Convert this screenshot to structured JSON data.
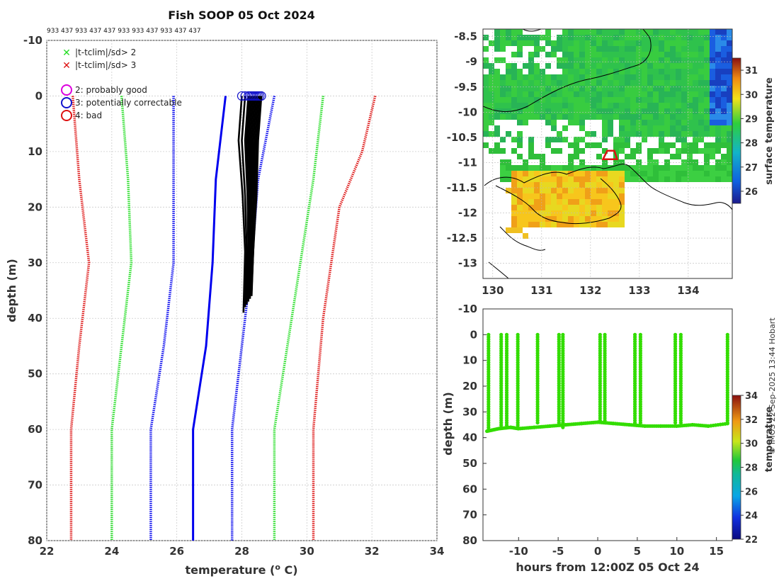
{
  "title": "Fish SOOP 05 Oct 2024",
  "platform_codes": "933 437 933 437 437 933 933 437 933 437 437",
  "credit": "© IMOS 22-Sep-2025 13:44 Hobart",
  "colors": {
    "sd2": "#22dd22",
    "sd3": "#dd1111",
    "qc2": "#dd00dd",
    "qc3": "#1111cc",
    "qc4": "#dd1111",
    "clim_mean": "#0000ee",
    "profile": "#000000",
    "obs": "#33dd00"
  },
  "legend": {
    "sd2": "|t-tclim|/sd> 2",
    "sd3": "|t-tclim|/sd> 3",
    "qc2": "2: probably good",
    "qc3": "3: potentially correctable",
    "qc4": "4: bad"
  },
  "chart_data": [
    {
      "type": "line",
      "name": "profile",
      "title": "Fish SOOP 05 Oct 2024",
      "xlabel": "temperature (o C)",
      "ylabel": "depth (m)",
      "xlim": [
        22,
        34
      ],
      "ylim": [
        80,
        -10
      ],
      "xticks": [
        22,
        24,
        26,
        28,
        30,
        32,
        34
      ],
      "yticks": [
        -10,
        0,
        10,
        20,
        30,
        40,
        50,
        60,
        70,
        80
      ],
      "grid": true,
      "series": [
        {
          "name": "clim -3sd",
          "style": "dotted",
          "color": "#dd1111",
          "x": [
            22.8,
            23.0,
            23.3,
            23.0,
            22.75,
            22.75
          ],
          "y": [
            0,
            15,
            30,
            45,
            60,
            80
          ]
        },
        {
          "name": "clim -2sd",
          "style": "dotted",
          "color": "#22dd22",
          "x": [
            24.3,
            24.5,
            24.6,
            24.3,
            24.0,
            24.0
          ],
          "y": [
            0,
            15,
            30,
            45,
            60,
            80
          ]
        },
        {
          "name": "clim -1sd",
          "style": "dotted",
          "color": "#0000ee",
          "x": [
            25.9,
            25.9,
            25.9,
            25.6,
            25.2,
            25.2
          ],
          "y": [
            0,
            15,
            30,
            45,
            60,
            80
          ]
        },
        {
          "name": "clim mean",
          "style": "solid",
          "color": "#0000ee",
          "x": [
            27.5,
            27.2,
            27.1,
            26.9,
            26.5,
            26.5
          ],
          "y": [
            0,
            15,
            30,
            45,
            60,
            80
          ]
        },
        {
          "name": "clim +1sd",
          "style": "dotted",
          "color": "#0000ee",
          "x": [
            29.0,
            28.5,
            28.3,
            28.0,
            27.7,
            27.7
          ],
          "y": [
            0,
            15,
            30,
            45,
            60,
            80
          ]
        },
        {
          "name": "clim +2sd",
          "style": "dotted",
          "color": "#22dd22",
          "x": [
            30.5,
            30.2,
            29.8,
            29.4,
            29.0,
            29.0
          ],
          "y": [
            0,
            15,
            30,
            45,
            60,
            80
          ]
        },
        {
          "name": "clim +3sd",
          "style": "dotted",
          "color": "#dd1111",
          "x": [
            32.1,
            31.7,
            31.0,
            30.5,
            30.2,
            30.2
          ],
          "y": [
            0,
            10,
            20,
            40,
            60,
            80
          ]
        }
      ],
      "profiles": {
        "color": "#000000",
        "surface_x": [
          28.0,
          28.1,
          28.2,
          28.25,
          28.3,
          28.35,
          28.4,
          28.45,
          28.5,
          28.55,
          28.6
        ],
        "bottom_x": [
          28.05,
          28.1,
          28.15,
          28.15,
          28.2,
          28.2,
          28.2,
          28.25,
          28.25,
          28.3,
          28.3
        ],
        "bottom_y": [
          39,
          38,
          37.5,
          37,
          36.5,
          37,
          36,
          36.5,
          35.5,
          36,
          35
        ]
      }
    },
    {
      "type": "heatmap",
      "name": "map",
      "colorbar_label": "surface temperature",
      "xlim": [
        129.8,
        134.9
      ],
      "ylim": [
        -13.3,
        -8.35
      ],
      "xticks": [
        130,
        131,
        132,
        133,
        134
      ],
      "yticks": [
        -8.5,
        -9,
        -9.5,
        -10,
        -10.5,
        -11,
        -11.5,
        -12,
        -12.5,
        -13
      ],
      "clim": [
        25.5,
        31.5
      ],
      "cticks": [
        26,
        27,
        28,
        29,
        30,
        31
      ],
      "marker": {
        "lon": 132.4,
        "lat": -10.85,
        "label": "Fish SOOP position"
      }
    },
    {
      "type": "scatter",
      "name": "time-depth",
      "xlabel": "hours from 12:00Z 05 Oct 24",
      "ylabel": "depth (m)",
      "xlim": [
        -14.5,
        17
      ],
      "ylim": [
        80,
        -10
      ],
      "xticks": [
        -10,
        -5,
        0,
        5,
        10,
        15
      ],
      "yticks": [
        -10,
        0,
        10,
        20,
        30,
        40,
        50,
        60,
        70,
        80
      ],
      "colorbar_label": "temperature",
      "clim": [
        22,
        34
      ],
      "cticks": [
        22,
        24,
        26,
        28,
        30,
        32,
        34
      ],
      "casts": [
        {
          "hours": -13.8,
          "top": 0,
          "bottom": 37.5
        },
        {
          "hours": -12.2,
          "top": 0,
          "bottom": 36
        },
        {
          "hours": -11.5,
          "top": 0,
          "bottom": 36
        },
        {
          "hours": -10.1,
          "top": 0,
          "bottom": 36.5
        },
        {
          "hours": -7.6,
          "top": 0,
          "bottom": 35
        },
        {
          "hours": -4.9,
          "top": 0,
          "bottom": 35
        },
        {
          "hours": -4.4,
          "top": 0,
          "bottom": 36
        },
        {
          "hours": 0.3,
          "top": 0,
          "bottom": 34
        },
        {
          "hours": 0.9,
          "top": 0,
          "bottom": 34
        },
        {
          "hours": 4.7,
          "top": 0,
          "bottom": 34.5
        },
        {
          "hours": 5.4,
          "top": 0,
          "bottom": 35
        },
        {
          "hours": 9.8,
          "top": 0,
          "bottom": 35
        },
        {
          "hours": 10.5,
          "top": 0,
          "bottom": 35
        },
        {
          "hours": 16.4,
          "top": 0,
          "bottom": 34.5
        }
      ],
      "bottom_track": {
        "hours": [
          -14.0,
          -12.5,
          -11.0,
          -10.0,
          -8.0,
          -6.0,
          -4.0,
          -2.0,
          0.0,
          2.0,
          4.0,
          6.0,
          8.0,
          10.0,
          12.0,
          14.0,
          16.5
        ],
        "depth": [
          37.5,
          36.5,
          36.0,
          36.5,
          36.0,
          35.5,
          35.0,
          34.5,
          34.0,
          34.5,
          35.0,
          35.5,
          35.5,
          35.5,
          35.0,
          35.5,
          34.5
        ]
      }
    }
  ]
}
